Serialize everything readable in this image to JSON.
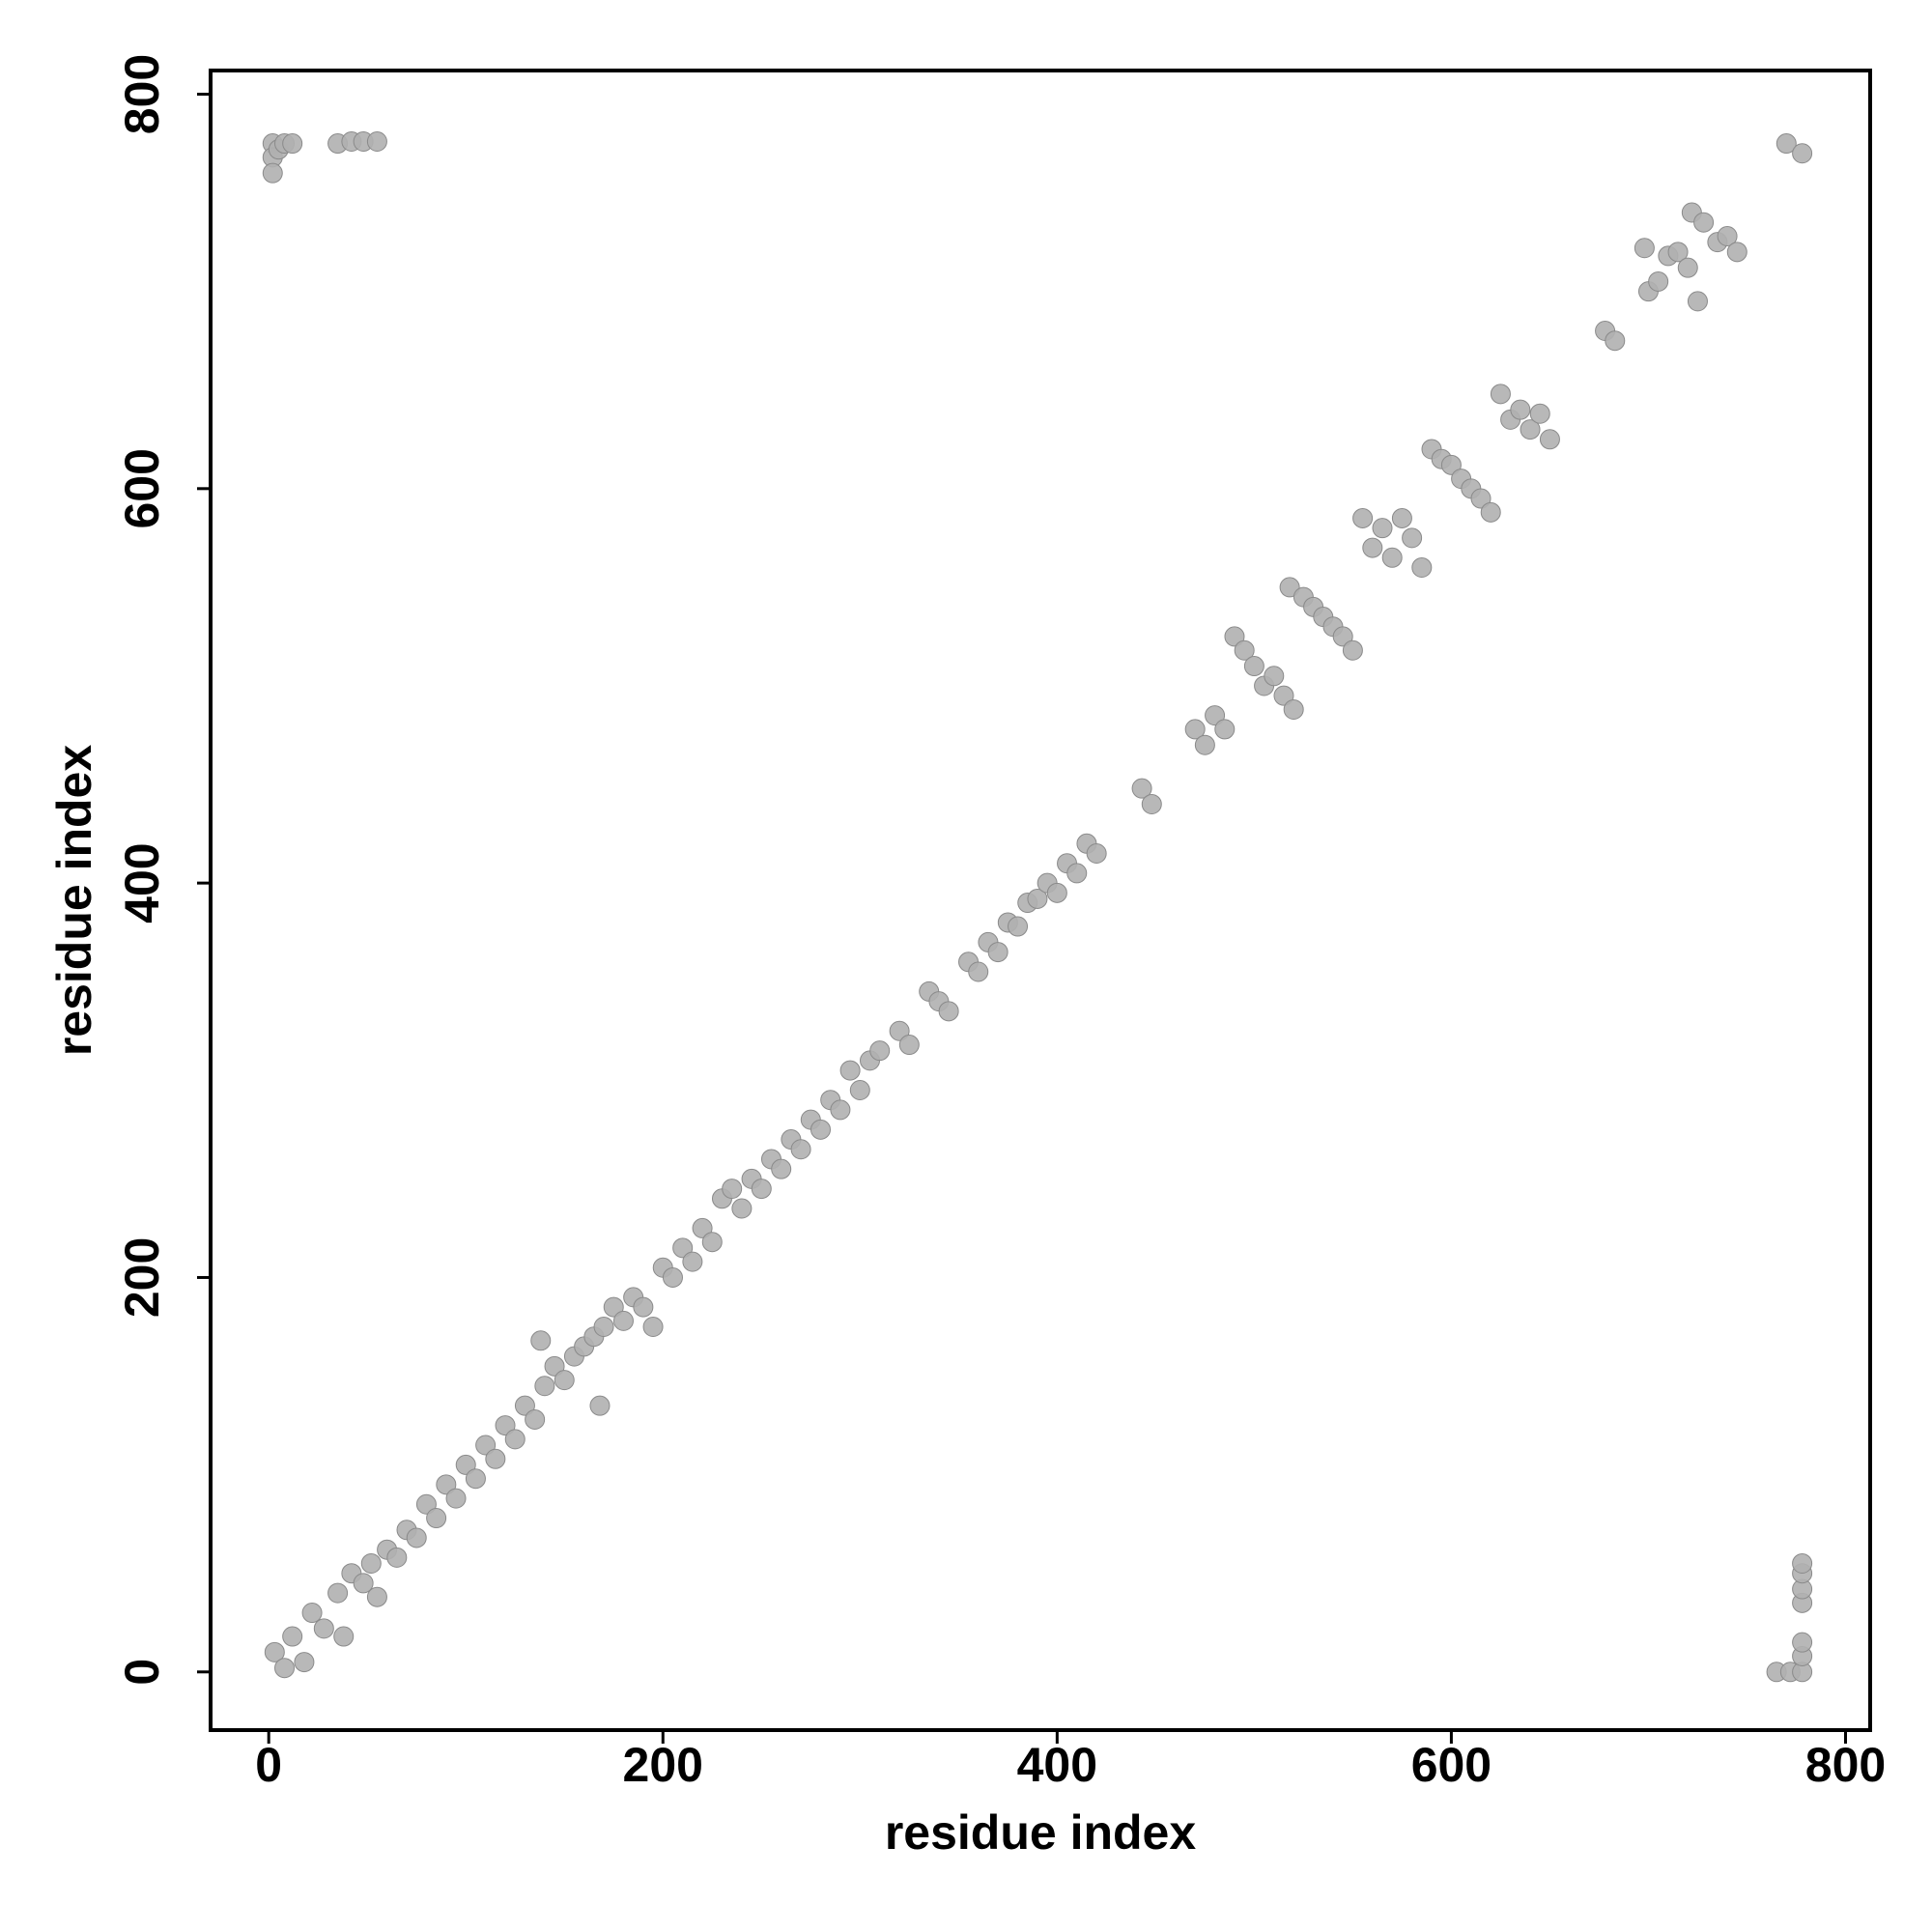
{
  "chart_data": {
    "type": "scatter",
    "x_label": "residue index",
    "y_label": "residue index",
    "xlim": [
      -29.5,
      812.5
    ],
    "ylim": [
      -29.5,
      812
    ],
    "xticks": [
      0,
      200,
      400,
      600,
      800
    ],
    "yticks": [
      0,
      200,
      400,
      600,
      800
    ],
    "color": "#b0b0b0",
    "grid": false,
    "x": [
      2,
      2,
      2,
      5,
      8,
      12,
      35,
      42,
      48,
      55,
      3,
      8,
      12,
      18,
      22,
      28,
      35,
      38,
      42,
      48,
      52,
      55,
      60,
      65,
      70,
      75,
      80,
      85,
      90,
      95,
      100,
      105,
      110,
      115,
      120,
      125,
      130,
      135,
      140,
      145,
      150,
      155,
      160,
      165,
      170,
      175,
      180,
      185,
      190,
      195,
      200,
      205,
      210,
      215,
      220,
      225,
      230,
      235,
      240,
      245,
      250,
      255,
      260,
      265,
      270,
      275,
      280,
      285,
      290,
      295,
      300,
      305,
      310,
      320,
      325,
      335,
      340,
      345,
      355,
      360,
      365,
      370,
      375,
      380,
      385,
      390,
      395,
      400,
      405,
      410,
      415,
      420,
      138,
      168,
      443,
      448,
      470,
      475,
      480,
      485,
      490,
      495,
      500,
      505,
      510,
      515,
      520,
      518,
      525,
      530,
      535,
      540,
      545,
      550,
      555,
      560,
      565,
      570,
      575,
      580,
      585,
      590,
      595,
      600,
      605,
      610,
      615,
      620,
      625,
      630,
      635,
      640,
      645,
      650,
      678,
      683,
      698,
      700,
      705,
      710,
      715,
      720,
      722,
      728,
      735,
      740,
      745,
      725,
      770,
      778,
      765,
      772,
      778,
      778,
      778,
      778,
      778,
      778,
      778
    ],
    "y": [
      775,
      768,
      760,
      772,
      775,
      775,
      775,
      776,
      776,
      776,
      10,
      2,
      18,
      5,
      30,
      22,
      40,
      18,
      50,
      45,
      55,
      38,
      62,
      58,
      72,
      68,
      85,
      78,
      95,
      88,
      105,
      98,
      115,
      108,
      125,
      118,
      135,
      128,
      145,
      155,
      148,
      160,
      165,
      170,
      175,
      185,
      178,
      190,
      185,
      175,
      205,
      200,
      215,
      208,
      225,
      218,
      240,
      245,
      235,
      250,
      245,
      260,
      255,
      270,
      265,
      280,
      275,
      290,
      285,
      305,
      295,
      310,
      315,
      325,
      318,
      345,
      340,
      335,
      360,
      355,
      370,
      365,
      380,
      378,
      390,
      392,
      400,
      395,
      410,
      405,
      420,
      415,
      168,
      135,
      448,
      440,
      478,
      470,
      485,
      478,
      525,
      518,
      510,
      500,
      505,
      495,
      488,
      550,
      545,
      540,
      535,
      530,
      525,
      518,
      585,
      570,
      580,
      565,
      585,
      575,
      560,
      620,
      615,
      612,
      605,
      600,
      595,
      588,
      648,
      635,
      640,
      630,
      638,
      625,
      680,
      675,
      722,
      700,
      705,
      718,
      720,
      712,
      740,
      735,
      725,
      728,
      720,
      695,
      775,
      770,
      0,
      0,
      0,
      8,
      15,
      35,
      42,
      50,
      55
    ]
  }
}
